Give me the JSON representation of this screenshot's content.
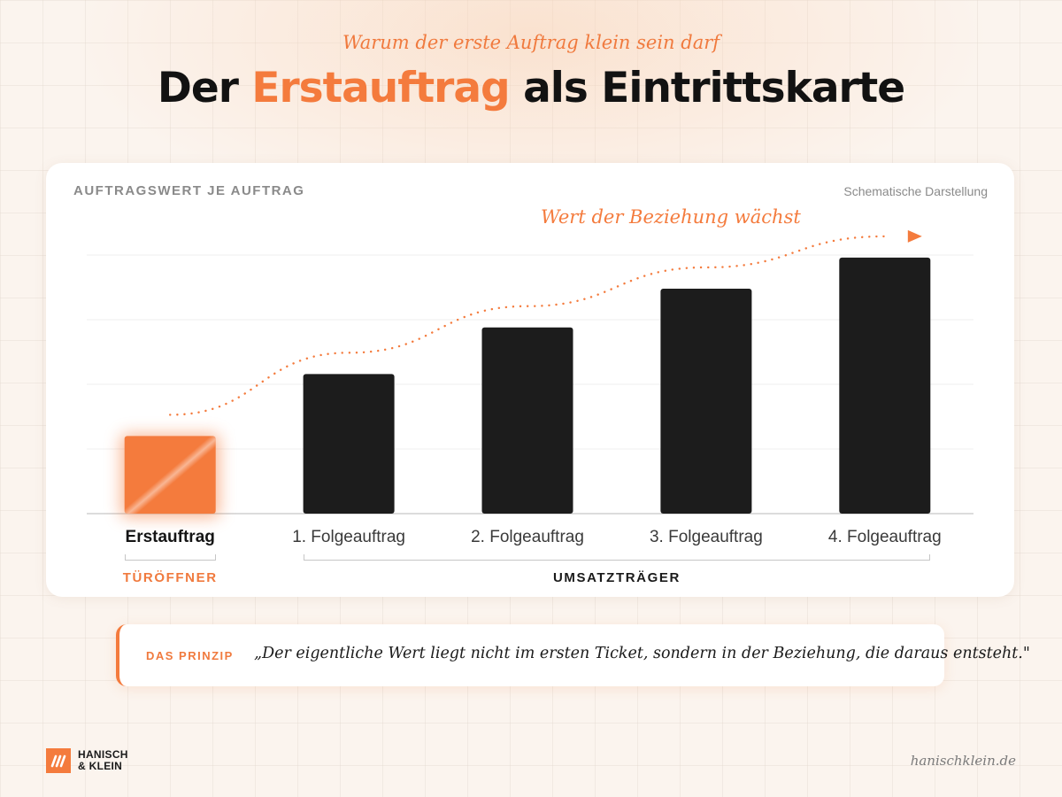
{
  "header": {
    "eyebrow": "Warum der erste Auftrag klein sein darf",
    "title_pre": "Der ",
    "title_accent": "Erstauftrag",
    "title_post": " als Eintrittskarte"
  },
  "card": {
    "label": "AUFTRAGSWERT JE AUFTRAG",
    "note": "Schematische Darstellung"
  },
  "chart_data": {
    "type": "bar",
    "title": "",
    "xlabel": "",
    "ylabel": "",
    "ylim": [
      0,
      100
    ],
    "grid": true,
    "categories": [
      "Erstauftrag",
      "1. Folgeauftrag",
      "2. Folgeauftrag",
      "3. Folgeauftrag",
      "4. Folgeauftrag"
    ],
    "values": [
      30,
      54,
      72,
      87,
      99
    ],
    "highlight_index": 0,
    "colors": {
      "highlight": "#f47b3d",
      "bar": "#1c1c1c",
      "trend": "#f47b3d",
      "grid": "#efefef",
      "axis": "#d0d0d0"
    },
    "trend_label": "Wert der Beziehung wächst",
    "groups": [
      {
        "label": "TÜRÖFFNER",
        "from": 0,
        "to": 0,
        "color": "#f07a3e"
      },
      {
        "label": "UMSATZTRÄGER",
        "from": 1,
        "to": 4,
        "color": "#1a1a1a"
      }
    ]
  },
  "principle": {
    "tag": "DAS PRINZIP",
    "quote": "„Der eigentliche Wert liegt nicht im ersten Ticket, sondern in der Beziehung, die daraus entsteht.\""
  },
  "footer": {
    "logo_line1": "HANISCH",
    "logo_line2": "& KLEIN",
    "logo_icon": "hk-logo-mark",
    "site": "hanischklein.de"
  }
}
